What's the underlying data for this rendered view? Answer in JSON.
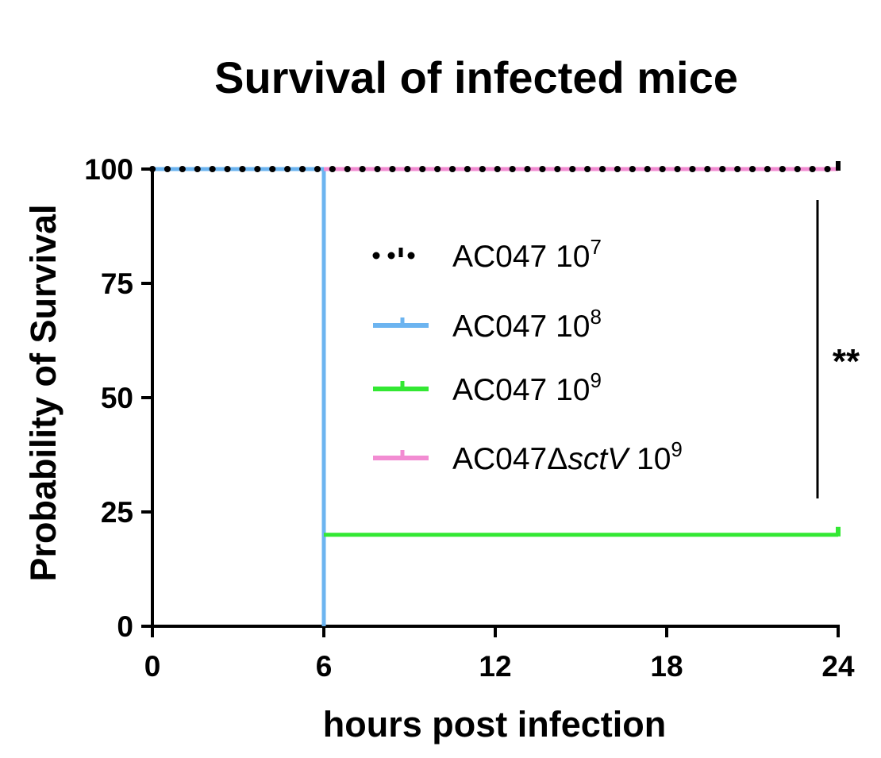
{
  "chart_data": {
    "type": "line",
    "title": "Survival of infected mice",
    "xlabel": "hours post infection",
    "ylabel": "Probability of Survival",
    "xlim": [
      0,
      24
    ],
    "ylim": [
      0,
      100
    ],
    "xticks": [
      0,
      6,
      12,
      18,
      24
    ],
    "yticks": [
      0,
      25,
      50,
      75,
      100
    ],
    "grid": false,
    "legend_position": "center-right",
    "series": [
      {
        "name": "AC047 10^7",
        "label_base": "AC047 10",
        "label_exp": "7",
        "style": "dotted",
        "color": "#000000",
        "points": [
          [
            0,
            100
          ],
          [
            24,
            100
          ]
        ]
      },
      {
        "name": "AC047 10^8",
        "label_base": "AC047 10",
        "label_exp": "8",
        "style": "solid",
        "color": "#6cb4f0",
        "points": [
          [
            0,
            100
          ],
          [
            6,
            100
          ],
          [
            6,
            0
          ]
        ]
      },
      {
        "name": "AC047 10^9",
        "label_base": "AC047 10",
        "label_exp": "9",
        "style": "solid",
        "color": "#33e833",
        "points": [
          [
            6,
            20
          ],
          [
            24,
            20
          ]
        ]
      },
      {
        "name": "AC047ΔsctV 10^9",
        "label_base": "AC047Δ",
        "label_italic": "sctV",
        "label_tail": " 10",
        "label_exp": "9",
        "style": "solid",
        "color": "#f28cd2",
        "points": [
          [
            6,
            100
          ],
          [
            24,
            100
          ]
        ]
      }
    ],
    "annotations": [
      {
        "text": "**",
        "type": "significance-bracket"
      }
    ]
  }
}
